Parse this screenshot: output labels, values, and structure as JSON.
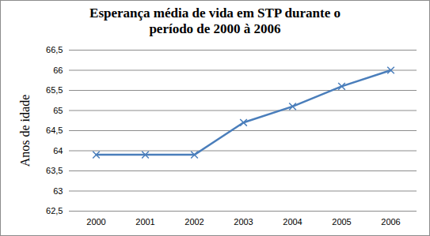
{
  "chart_data": {
    "type": "line",
    "title": "Esperança média de vida em STP durante o período de 2000 à 2006",
    "y_label": "Anos de idade",
    "categories": [
      "2000",
      "2001",
      "2002",
      "2003",
      "2004",
      "2005",
      "2006"
    ],
    "values": [
      63.9,
      63.9,
      63.9,
      64.7,
      65.1,
      65.6,
      66.0
    ],
    "color": "#4a7ebb",
    "marker": "x",
    "ylim": [
      62.5,
      66.5
    ],
    "yticks": [
      {
        "value": 62.5,
        "label": "62,5"
      },
      63,
      {
        "value": 63.5,
        "label": "63,5"
      },
      64,
      {
        "value": 64.5,
        "label": "64,5"
      },
      65,
      {
        "value": 65.5,
        "label": "65,5"
      },
      66,
      {
        "value": 66.5,
        "label": "66,5"
      }
    ],
    "grid": true
  }
}
